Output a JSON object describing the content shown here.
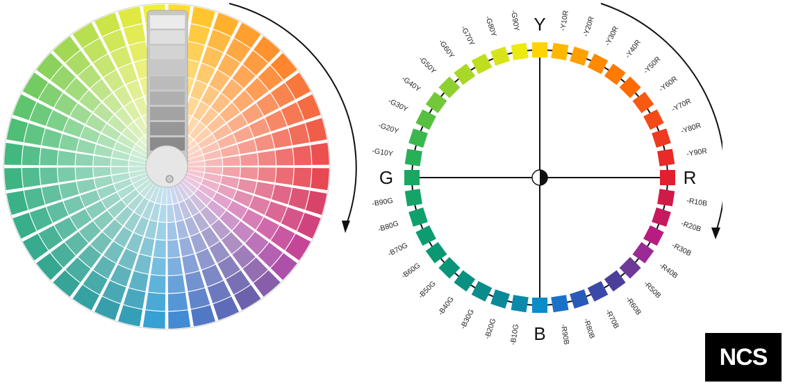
{
  "axes": {
    "top": "Y",
    "right": "R",
    "bottom": "B",
    "left": "G"
  },
  "hue_steps": [
    {
      "label": "Y",
      "color": "#ffd400"
    },
    {
      "label": "-Y10R",
      "color": "#ffb800"
    },
    {
      "label": "-Y20R",
      "color": "#ffa000"
    },
    {
      "label": "-Y30R",
      "color": "#ff8a00"
    },
    {
      "label": "-Y40R",
      "color": "#ff7a00"
    },
    {
      "label": "-Y50R",
      "color": "#ff6a00"
    },
    {
      "label": "-Y60R",
      "color": "#f75a10"
    },
    {
      "label": "-Y70R",
      "color": "#f34a18"
    },
    {
      "label": "-Y80R",
      "color": "#ee3a20"
    },
    {
      "label": "-Y90R",
      "color": "#e82a28"
    },
    {
      "label": "R",
      "color": "#e0202e"
    },
    {
      "label": "-R10B",
      "color": "#d01a48"
    },
    {
      "label": "-R20B",
      "color": "#c61a60"
    },
    {
      "label": "-R30B",
      "color": "#b81c80"
    },
    {
      "label": "-R40B",
      "color": "#9a2a96"
    },
    {
      "label": "-R50B",
      "color": "#6e3a98"
    },
    {
      "label": "-R60B",
      "color": "#4a3e9a"
    },
    {
      "label": "-R70B",
      "color": "#3a4aa8"
    },
    {
      "label": "-R80B",
      "color": "#2a5ab8"
    },
    {
      "label": "-R90B",
      "color": "#1a72c8"
    },
    {
      "label": "B",
      "color": "#0a8cc8"
    },
    {
      "label": "-B10G",
      "color": "#0a8aa8"
    },
    {
      "label": "-B20G",
      "color": "#0a8a98"
    },
    {
      "label": "-B30G",
      "color": "#0a8c8c"
    },
    {
      "label": "-B40G",
      "color": "#0a9080"
    },
    {
      "label": "-B50G",
      "color": "#0a9478"
    },
    {
      "label": "-B60G",
      "color": "#0a9874"
    },
    {
      "label": "-B70G",
      "color": "#0c9c70"
    },
    {
      "label": "-B80G",
      "color": "#10a06c"
    },
    {
      "label": "-B90G",
      "color": "#14a468"
    },
    {
      "label": "G",
      "color": "#18a862"
    },
    {
      "label": "-G10Y",
      "color": "#28b058"
    },
    {
      "label": "-G20Y",
      "color": "#3ab84e"
    },
    {
      "label": "-G30Y",
      "color": "#56c040"
    },
    {
      "label": "-G40Y",
      "color": "#72c838"
    },
    {
      "label": "-G50Y",
      "color": "#8ed030"
    },
    {
      "label": "-G60Y",
      "color": "#a8d828"
    },
    {
      "label": "-G70Y",
      "color": "#c0de20"
    },
    {
      "label": "-G80Y",
      "color": "#d8e418"
    },
    {
      "label": "-G90Y",
      "color": "#ecea10"
    }
  ],
  "logo": {
    "text": "NCS"
  },
  "icons": {
    "fan": "color-fan-deck-icon",
    "rotation_arrow": "clockwise-arrow-icon",
    "center": "black-white-center-icon"
  }
}
